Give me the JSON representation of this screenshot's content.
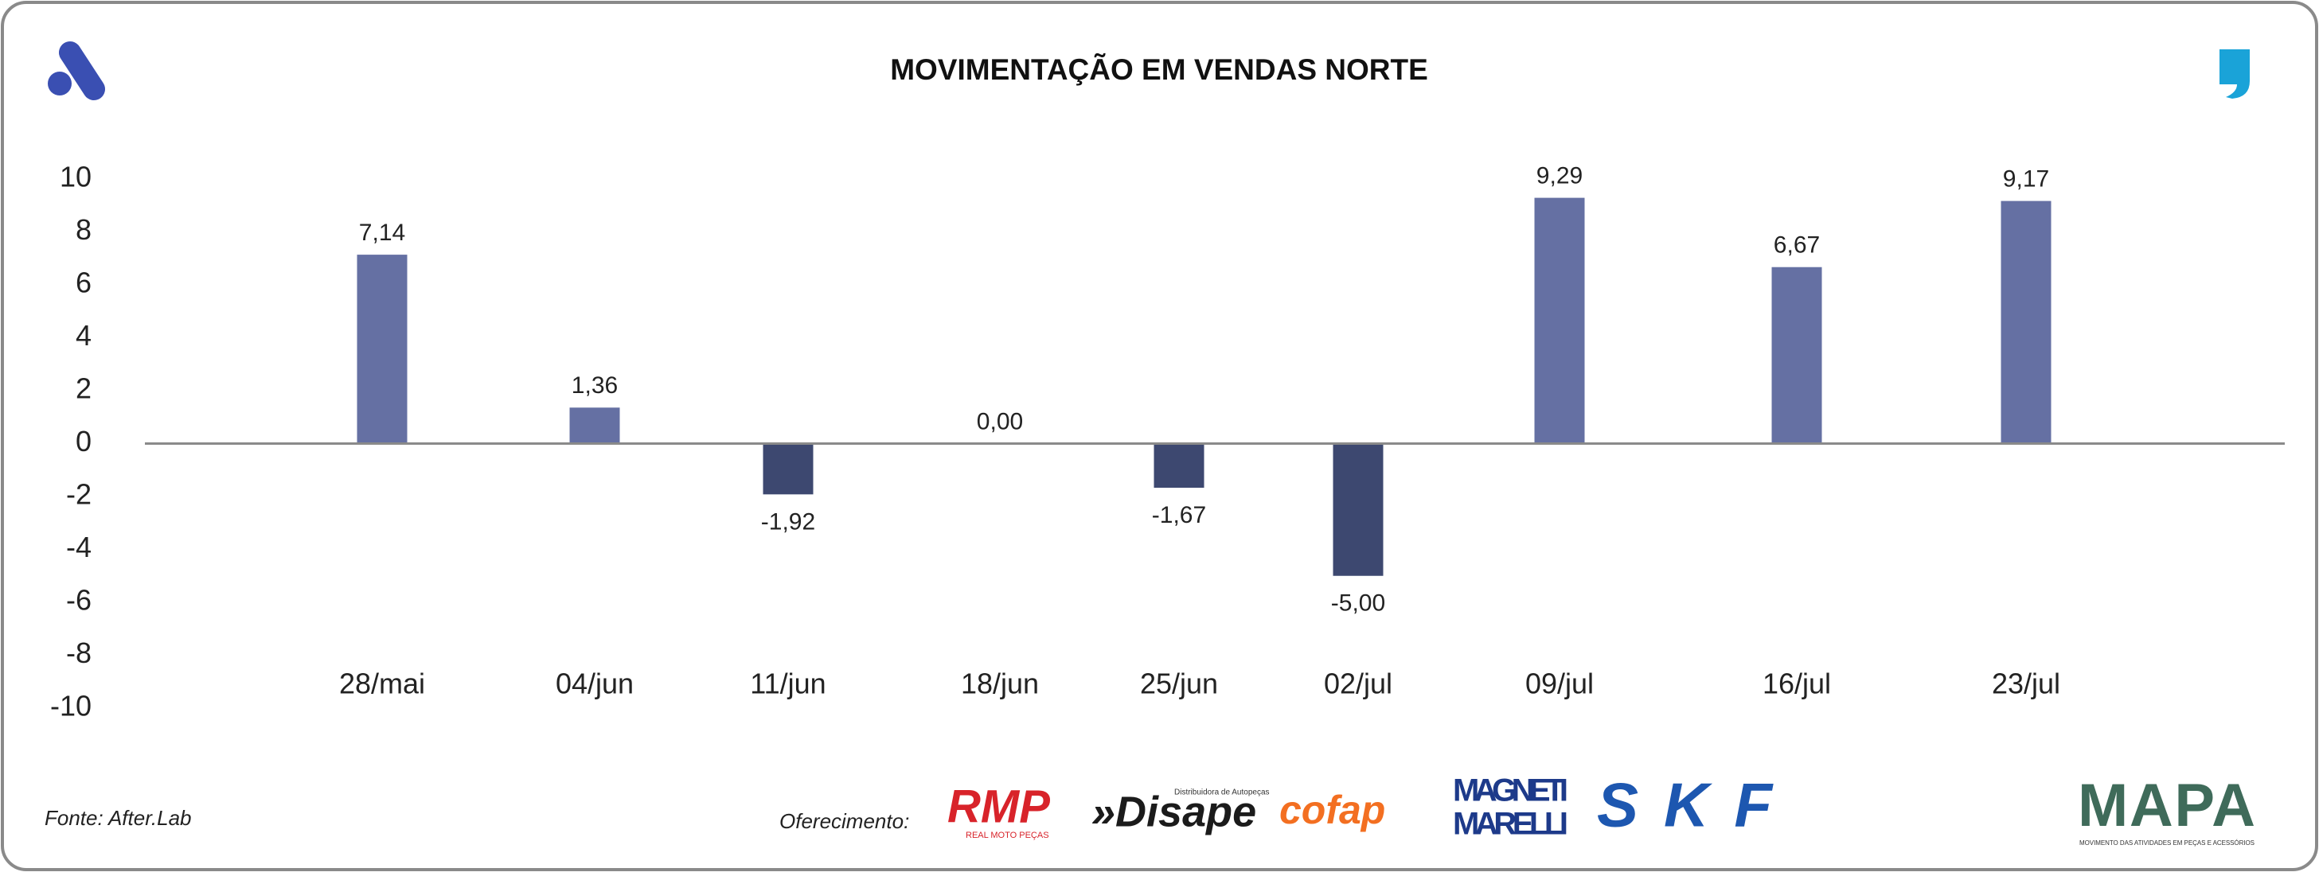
{
  "chart_data": {
    "type": "bar",
    "title": "MOVIMENTAÇÃO EM VENDAS NORTE",
    "categories": [
      "28/mai",
      "04/jun",
      "11/jun",
      "18/jun",
      "25/jun",
      "02/jul",
      "09/jul",
      "16/jul",
      "23/jul"
    ],
    "values": [
      7.14,
      1.36,
      -1.92,
      0,
      -1.67,
      -5.0,
      9.29,
      6.67,
      9.17
    ],
    "value_labels": [
      "7,14",
      "1,36",
      "-1,92",
      "0,00",
      "-1,67",
      "-5,00",
      "9,29",
      "6,67",
      "9,17"
    ],
    "color": "#6570a3",
    "negative_color": "#3d4870",
    "ylim": [
      -10,
      10
    ],
    "yticks": [
      -10,
      -8,
      -6,
      -4,
      -2,
      0,
      2,
      4,
      6,
      8,
      10
    ]
  },
  "footer": {
    "source": "Fonte: After.Lab",
    "sponsor_label": "Oferecimento:",
    "sponsors": {
      "rmp": "RMP",
      "rmp_sub": "REAL MOTO PEÇAS",
      "disape": "»Disape",
      "disape_sub": "Distribuidora de Autopeças",
      "cofap": "cofap",
      "magneti": "MAGNETI",
      "marelli": "MARELLI",
      "skf": "SKF"
    },
    "brand": "MAPA",
    "brand_sub": "MOVIMENTO DAS ATIVIDADES EM PEÇAS E ACESSÓRIOS"
  }
}
